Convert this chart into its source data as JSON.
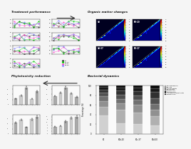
{
  "title_treatment": "Treatment performance",
  "title_organic": "Organic matter changes",
  "title_bacterial": "Bacterial dynamics",
  "title_phyto": "Phytotoxicity reduction",
  "background": "#f5f5f5",
  "line_colors_treatment": [
    "#333333",
    "#00cc00",
    "#ff44cc",
    "#8888ff",
    "#ffaa00"
  ],
  "treat_labels": [
    "S0",
    "S0-20",
    "S0-37",
    "S0-50"
  ],
  "bar_color_phyto": "#aaaaaa",
  "bar_color_phyto2": "#cccccc",
  "stacked_colors": [
    "#d0d0d0",
    "#b0b0b0",
    "#909090",
    "#707070",
    "#505050",
    "#303030",
    "#181818",
    "#080808"
  ],
  "stacked_labels": [
    "Pseudomonadota",
    "Bacillota",
    "Actinomycetota",
    "Bacteroidota",
    "Chloroflexota",
    "Euryarchaeota",
    "Thermodesulfobacteriota",
    "Halobacterota"
  ],
  "stacked_categories": [
    "S0",
    "S0b-20",
    "S0c-37",
    "S0d-50"
  ],
  "stacked_data": [
    [
      38,
      22,
      20,
      17
    ],
    [
      18,
      28,
      24,
      20
    ],
    [
      12,
      13,
      16,
      13
    ],
    [
      10,
      9,
      11,
      11
    ],
    [
      7,
      9,
      9,
      13
    ],
    [
      7,
      9,
      9,
      13
    ],
    [
      5,
      6,
      7,
      8
    ],
    [
      3,
      4,
      4,
      5
    ]
  ],
  "fluoro_labels": [
    "S0",
    "FE-20",
    "S0-37",
    "FE-37"
  ],
  "fluoro_label2": [
    "(a)",
    "(b)",
    "(c)",
    "(d)"
  ]
}
